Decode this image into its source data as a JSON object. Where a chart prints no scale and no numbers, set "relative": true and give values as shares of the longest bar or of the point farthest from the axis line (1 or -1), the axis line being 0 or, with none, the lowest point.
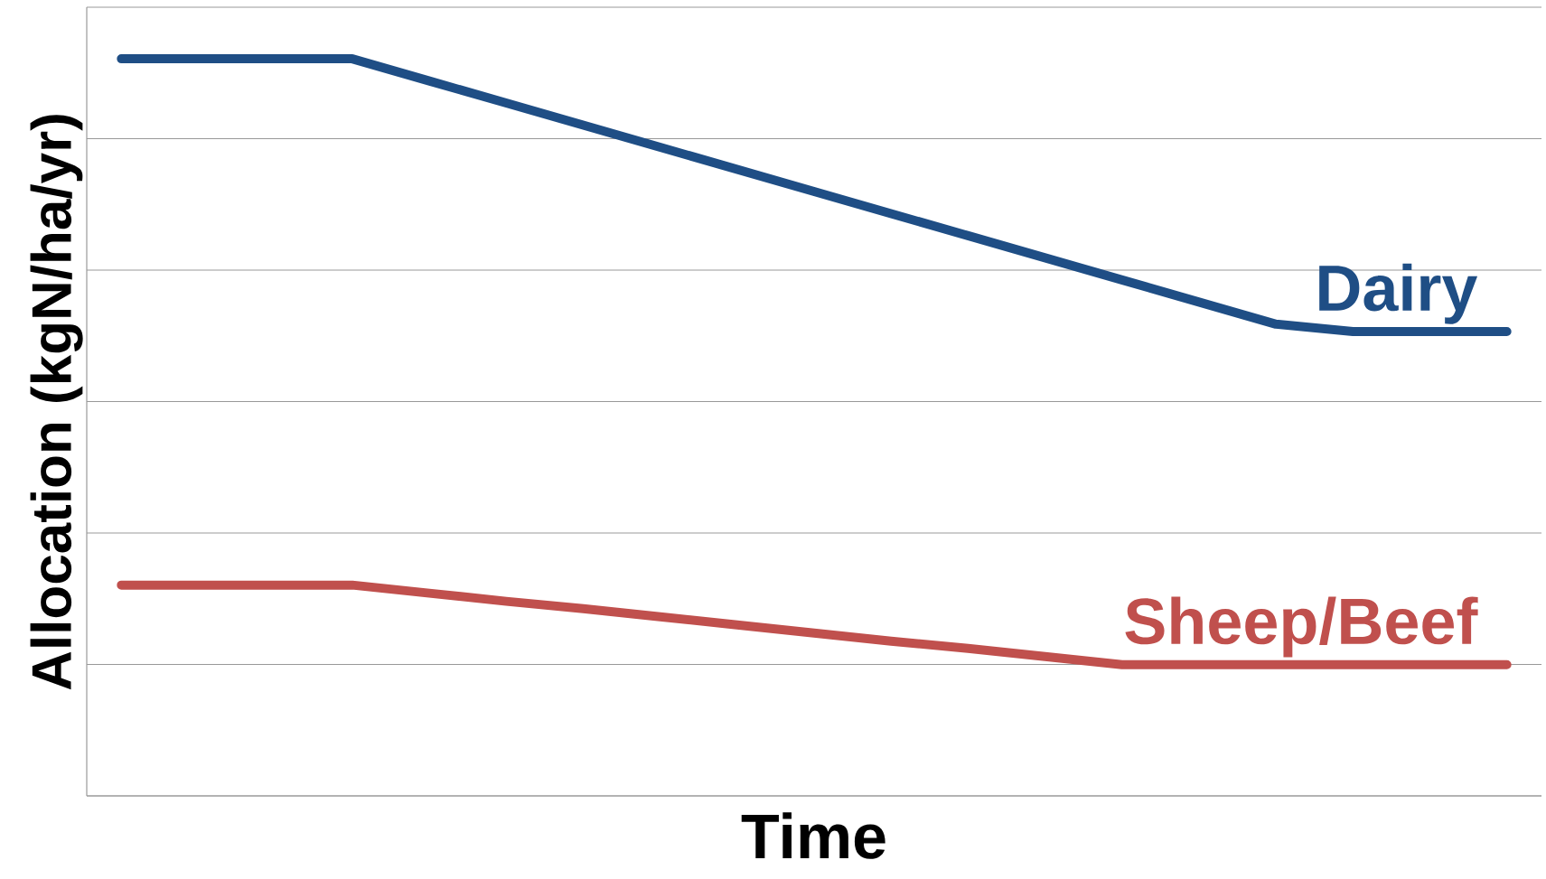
{
  "chart_data": {
    "type": "line",
    "relative": true,
    "xlabel": "Time",
    "ylabel": "Allocation (kgN/ha/yr)",
    "grid": "y",
    "line_style": "solid",
    "categories": [
      null,
      null,
      null,
      null,
      null,
      null,
      null,
      null,
      null,
      null,
      null,
      null,
      null,
      null,
      null,
      null,
      null,
      null,
      null
    ],
    "series": [
      {
        "name": "Dairy",
        "color": "#1f4e85",
        "values": [
          1,
          1,
          1,
          1,
          0.97,
          0.94,
          0.91,
          0.88,
          0.85,
          0.82,
          0.79,
          0.76,
          0.73,
          0.7,
          0.67,
          0.64,
          0.63,
          0.63,
          0.63
        ]
      },
      {
        "name": "Sheep/Beef",
        "color": "#c0504d",
        "values": [
          0.286,
          0.286,
          0.286,
          0.286,
          0.275,
          0.264,
          0.254,
          0.243,
          0.232,
          0.221,
          0.21,
          0.2,
          0.189,
          0.178,
          0.178,
          0.178,
          0.178,
          0.178,
          0.178
        ]
      }
    ]
  }
}
